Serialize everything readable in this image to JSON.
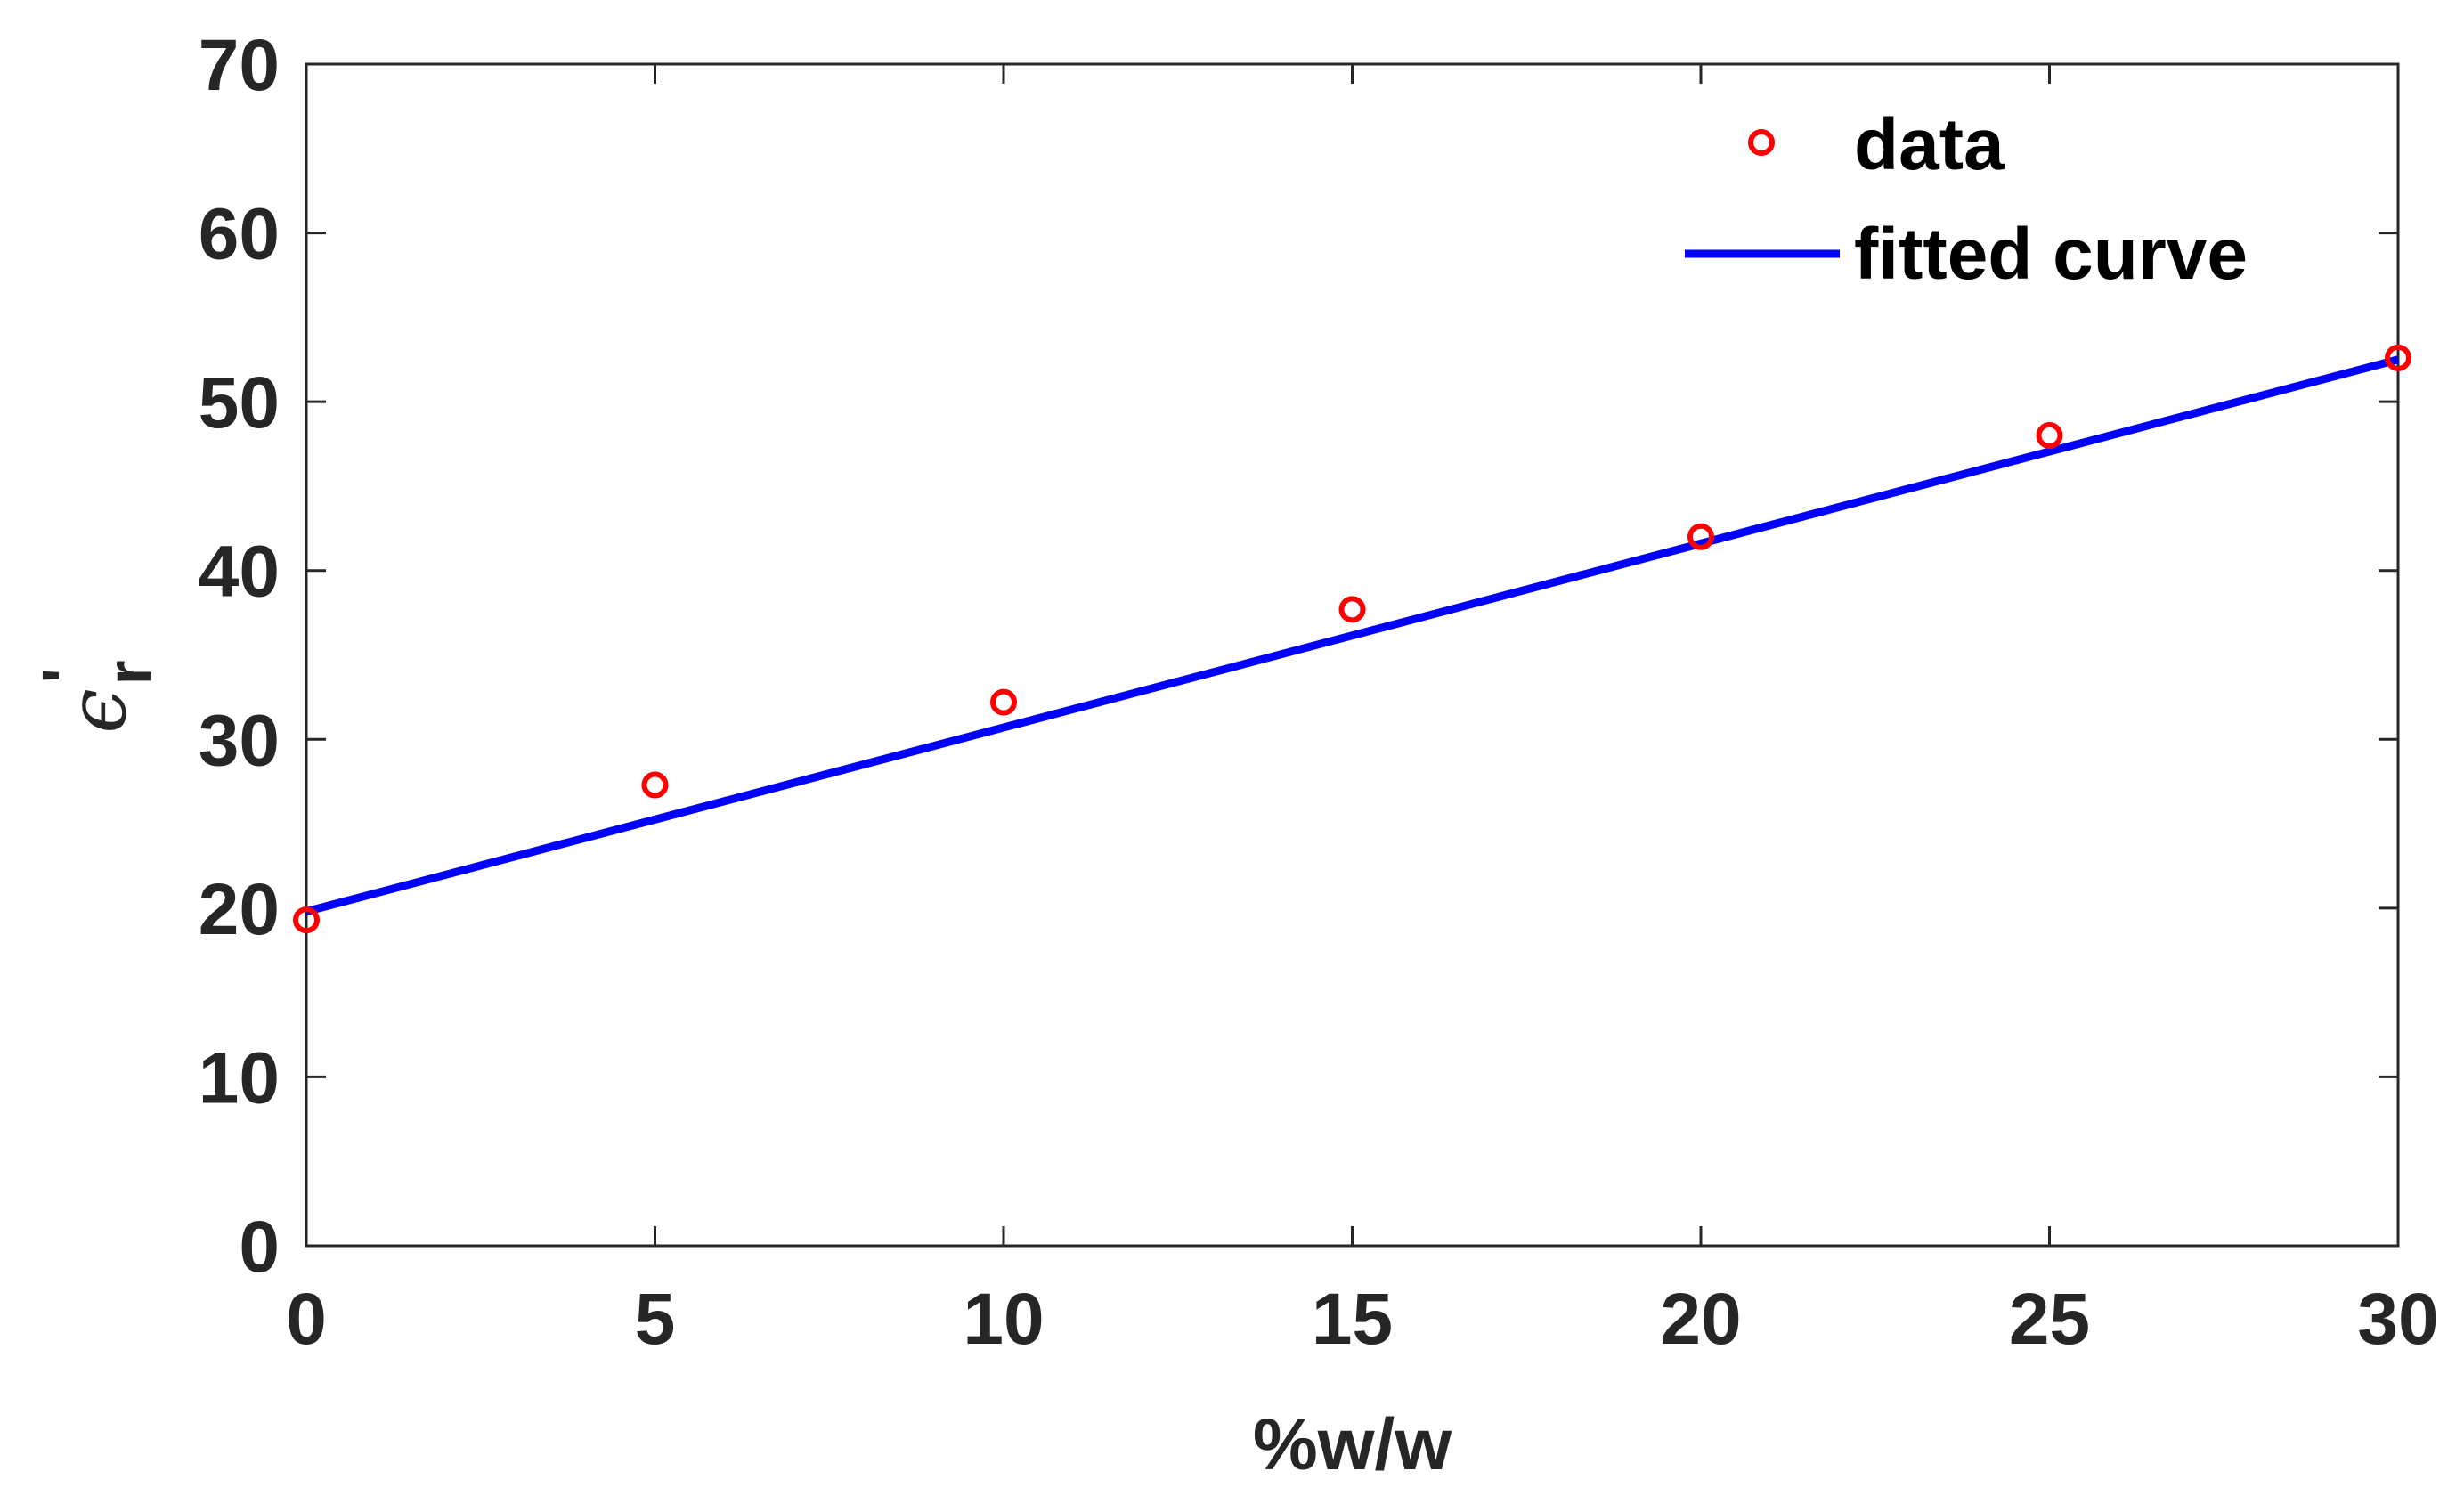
{
  "chart_data": {
    "type": "scatter",
    "title": "",
    "xlabel": "%w/w",
    "ylabel": {
      "symbol": "ϵ",
      "subscript": "r",
      "superscript": "'"
    },
    "xlim": [
      0,
      30
    ],
    "ylim": [
      0,
      70
    ],
    "xticks": [
      0,
      5,
      10,
      15,
      20,
      25,
      30
    ],
    "yticks": [
      0,
      10,
      20,
      30,
      40,
      50,
      60,
      70
    ],
    "xtick_labels": [
      "0",
      "5",
      "10",
      "15",
      "20",
      "25",
      "30"
    ],
    "ytick_labels": [
      "0",
      "10",
      "20",
      "30",
      "40",
      "50",
      "60",
      "70"
    ],
    "grid": false,
    "legend_position": "top-right",
    "series": [
      {
        "name": "data",
        "kind": "markers",
        "marker": "circle",
        "color": "#ff0000",
        "x": [
          0,
          5,
          10,
          15,
          20,
          25,
          30
        ],
        "y": [
          19.3,
          27.3,
          32.2,
          37.7,
          42.0,
          48.0,
          52.6
        ]
      },
      {
        "name": "fitted curve",
        "kind": "line",
        "color": "#0000ff",
        "x": [
          0,
          30
        ],
        "y": [
          19.8,
          52.5
        ]
      }
    ],
    "legend": {
      "entries": [
        "data",
        "fitted curve"
      ]
    }
  }
}
